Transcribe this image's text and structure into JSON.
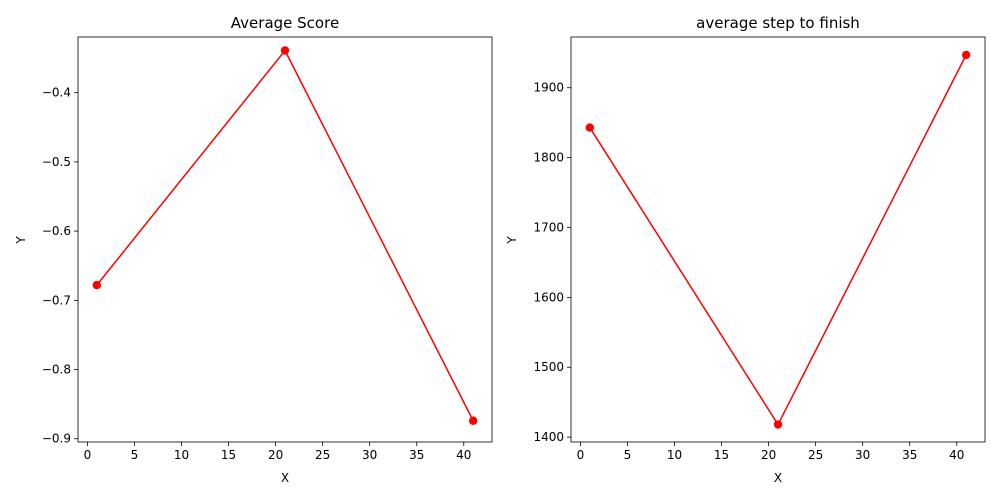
{
  "chart_data": [
    {
      "type": "line",
      "title": "Average Score",
      "xlabel": "X",
      "ylabel": "Y",
      "xlim": [
        -1,
        43
      ],
      "ylim": [
        -0.9047,
        -0.3195
      ],
      "xticks": [
        0,
        5,
        10,
        15,
        20,
        25,
        30,
        35,
        40
      ],
      "xtick_labels": [
        "0",
        "5",
        "10",
        "15",
        "20",
        "25",
        "30",
        "35",
        "40"
      ],
      "yticks": [
        -0.9,
        -0.8,
        -0.7,
        -0.6,
        -0.5,
        -0.4
      ],
      "ytick_labels": [
        "−0.9",
        "−0.8",
        "−0.7",
        "−0.6",
        "−0.5",
        "−0.4"
      ],
      "grid": false,
      "color": "#ff0000",
      "x": [
        1,
        21,
        41
      ],
      "y": [
        -0.678,
        -0.339,
        -0.874
      ]
    },
    {
      "type": "line",
      "title": "average step to finish",
      "xlabel": "X",
      "ylabel": "Y",
      "xlim": [
        -1,
        43
      ],
      "ylim": [
        1393.0,
        1972.6
      ],
      "xticks": [
        0,
        5,
        10,
        15,
        20,
        25,
        30,
        35,
        40
      ],
      "xtick_labels": [
        "0",
        "5",
        "10",
        "15",
        "20",
        "25",
        "30",
        "35",
        "40"
      ],
      "yticks": [
        1400,
        1500,
        1600,
        1700,
        1800,
        1900
      ],
      "ytick_labels": [
        "1400",
        "1500",
        "1600",
        "1700",
        "1800",
        "1900"
      ],
      "grid": false,
      "color": "#ff0000",
      "x": [
        1,
        21,
        41
      ],
      "y": [
        1843,
        1418,
        1947
      ]
    }
  ]
}
